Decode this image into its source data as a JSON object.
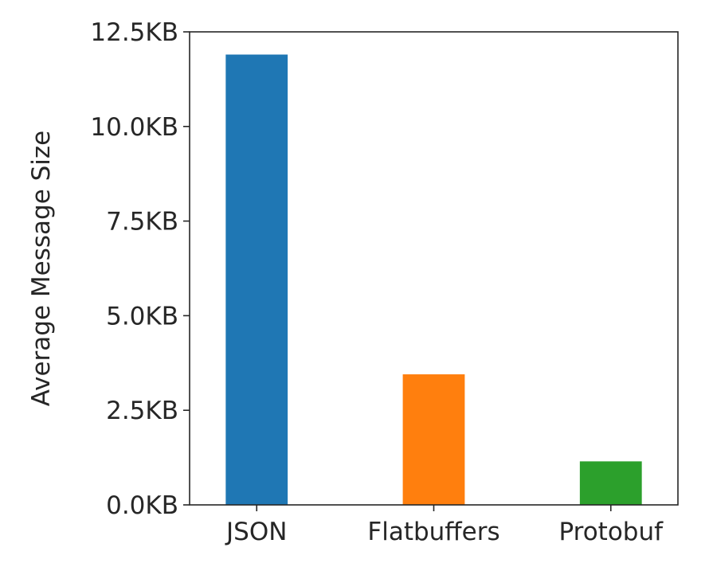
{
  "chart_data": {
    "type": "bar",
    "categories": [
      "JSON",
      "Flatbuffers",
      "Protobuf"
    ],
    "values": [
      11.9,
      3.45,
      1.15
    ],
    "unit": "KB",
    "colors": [
      "#1f77b4",
      "#ff7f0e",
      "#2ca02c"
    ],
    "title": "",
    "xlabel": "",
    "ylabel": "Average Message Size",
    "ylim": [
      0,
      12.5
    ],
    "yticks": [
      0,
      2.5,
      5,
      7.5,
      10,
      12.5
    ],
    "ytick_labels": [
      "0.0KB",
      "2.5KB",
      "5.0KB",
      "7.5KB",
      "10.0KB",
      "12.5KB"
    ],
    "grid": false,
    "legend": "none"
  }
}
